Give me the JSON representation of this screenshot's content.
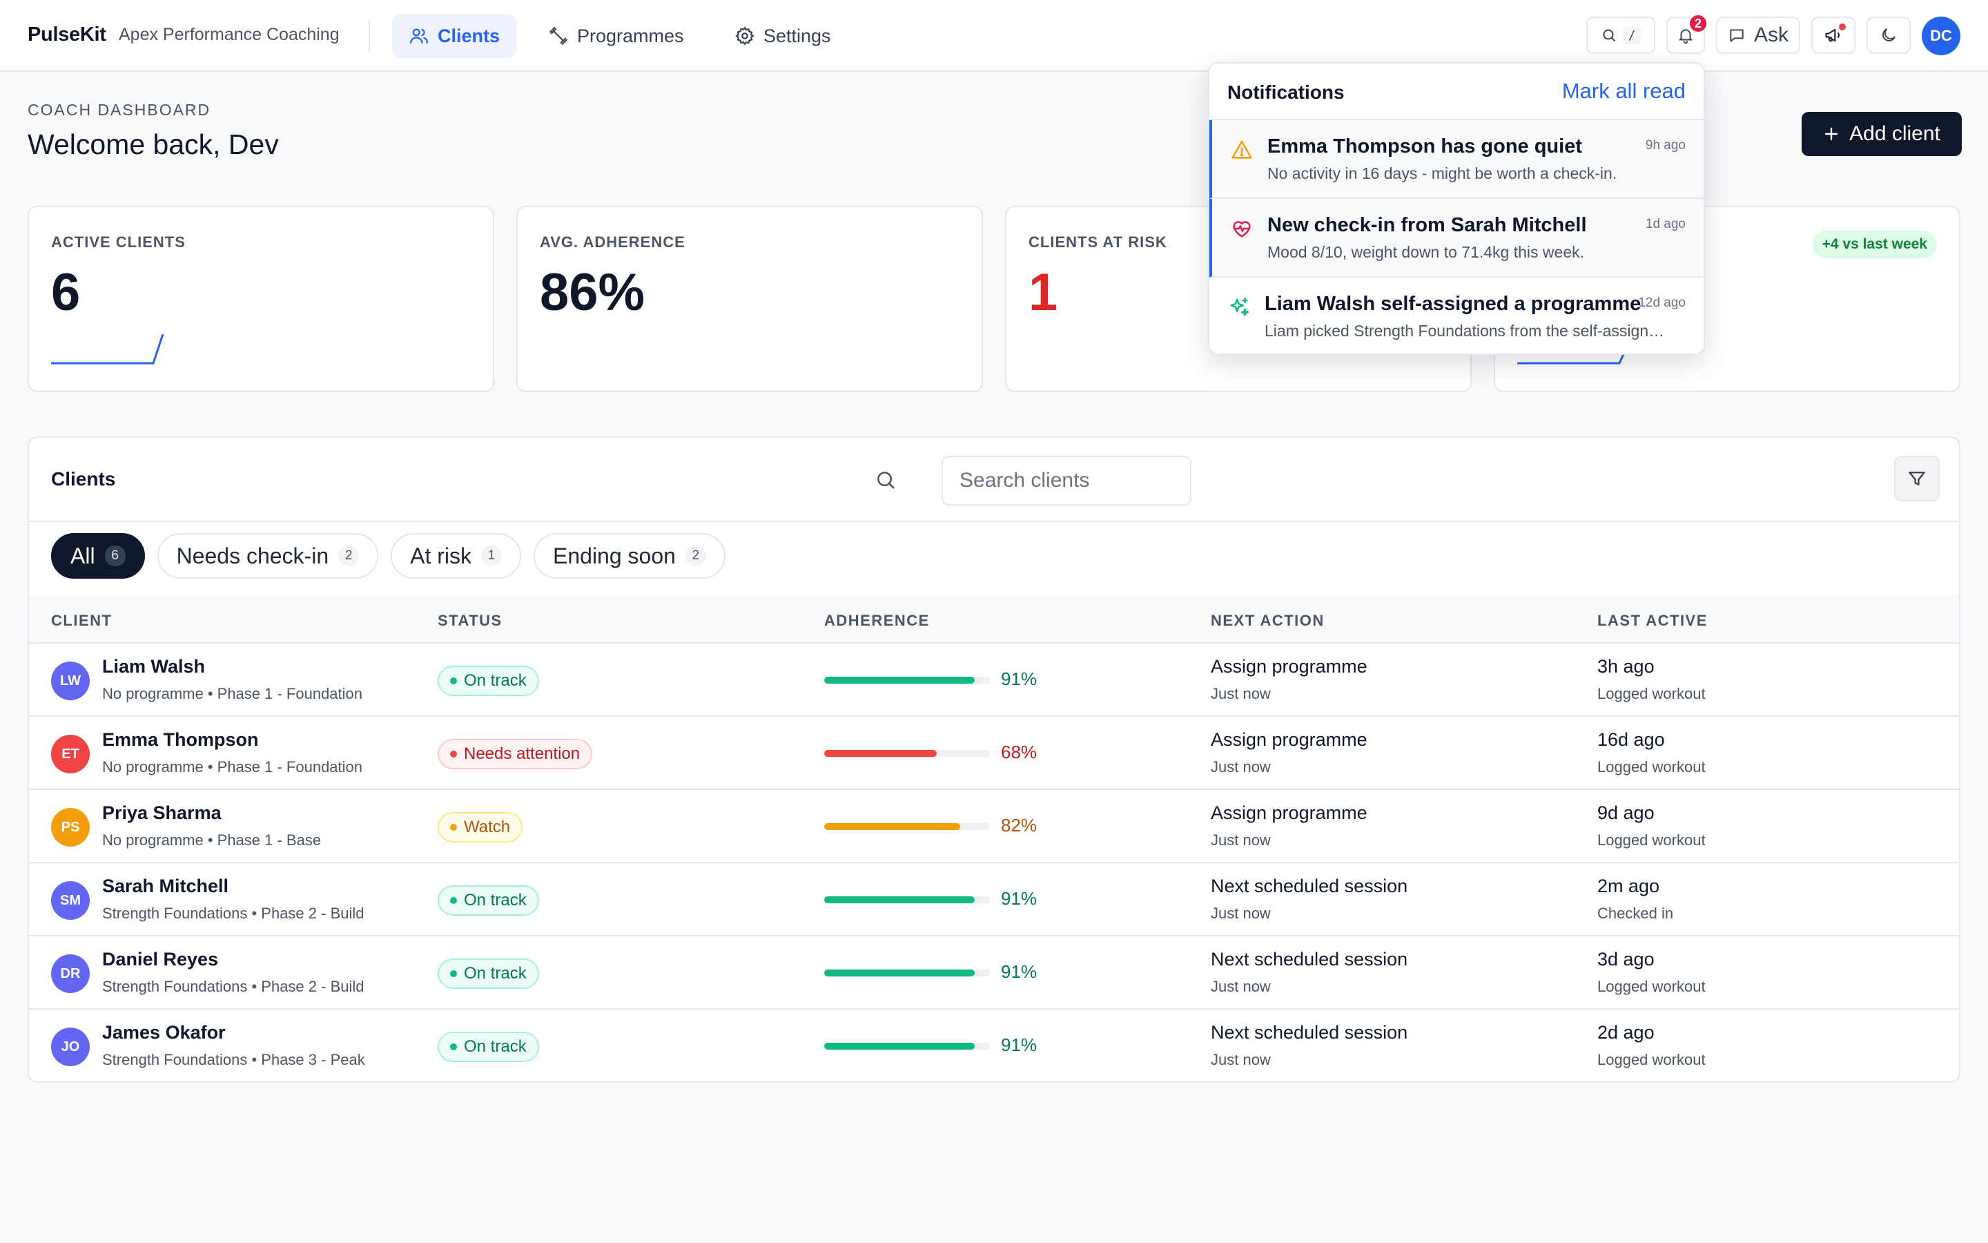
{
  "app": {
    "brand": "PulseKit",
    "org": "Apex Performance Coaching",
    "nav": [
      {
        "label": "Clients",
        "icon": "users-icon",
        "active": true
      },
      {
        "label": "Programmes",
        "icon": "dumbbell-icon",
        "active": false
      },
      {
        "label": "Settings",
        "icon": "gear-icon",
        "active": false
      }
    ],
    "search_shortcut": "/",
    "notification_count": "2",
    "ask_label": "Ask",
    "user_initials": "DC"
  },
  "header": {
    "eyebrow": "COACH DASHBOARD",
    "welcome": "Welcome back, Dev",
    "add_client_label": "Add client"
  },
  "stats": [
    {
      "label": "ACTIVE CLIENTS",
      "value": "6"
    },
    {
      "label": "AVG. ADHERENCE",
      "value": "86%"
    },
    {
      "label": "CLIENTS AT RISK",
      "value": "1"
    },
    {
      "label": "",
      "value": "",
      "delta": "+4 vs last week"
    }
  ],
  "clients_panel": {
    "title": "Clients",
    "search_placeholder": "Search clients",
    "filters": [
      {
        "label": "All",
        "count": "6",
        "active": true
      },
      {
        "label": "Needs check-in",
        "count": "2",
        "active": false
      },
      {
        "label": "At risk",
        "count": "1",
        "active": false
      },
      {
        "label": "Ending soon",
        "count": "2",
        "active": false
      }
    ],
    "columns": [
      "CLIENT",
      "STATUS",
      "ADHERENCE",
      "NEXT ACTION",
      "LAST ACTIVE"
    ],
    "rows": [
      {
        "initials": "LW",
        "avatar_color": "#6366f1",
        "name": "Liam Walsh",
        "sub": "No programme • Phase 1 - Foundation",
        "status": "On track",
        "status_kind": "good",
        "adherence": 91,
        "adherence_label": "91%",
        "next_action": "Assign programme",
        "next_action_sub": "Just now",
        "last_active": "3h ago",
        "last_active_sub": "Logged workout"
      },
      {
        "initials": "ET",
        "avatar_color": "#ef4444",
        "name": "Emma Thompson",
        "sub": "No programme • Phase 1 - Foundation",
        "status": "Needs attention",
        "status_kind": "bad",
        "adherence": 68,
        "adherence_label": "68%",
        "next_action": "Assign programme",
        "next_action_sub": "Just now",
        "last_active": "16d ago",
        "last_active_sub": "Logged workout"
      },
      {
        "initials": "PS",
        "avatar_color": "#f59e0b",
        "name": "Priya Sharma",
        "sub": "No programme • Phase 1 - Base",
        "status": "Watch",
        "status_kind": "warn",
        "adherence": 82,
        "adherence_label": "82%",
        "next_action": "Assign programme",
        "next_action_sub": "Just now",
        "last_active": "9d ago",
        "last_active_sub": "Logged workout"
      },
      {
        "initials": "SM",
        "avatar_color": "#6366f1",
        "name": "Sarah Mitchell",
        "sub": "Strength Foundations • Phase 2 - Build",
        "status": "On track",
        "status_kind": "good",
        "adherence": 91,
        "adherence_label": "91%",
        "next_action": "Next scheduled session",
        "next_action_sub": "Just now",
        "last_active": "2m ago",
        "last_active_sub": "Checked in"
      },
      {
        "initials": "DR",
        "avatar_color": "#6366f1",
        "name": "Daniel Reyes",
        "sub": "Strength Foundations • Phase 2 - Build",
        "status": "On track",
        "status_kind": "good",
        "adherence": 91,
        "adherence_label": "91%",
        "next_action": "Next scheduled session",
        "next_action_sub": "Just now",
        "last_active": "3d ago",
        "last_active_sub": "Logged workout"
      },
      {
        "initials": "JO",
        "avatar_color": "#6366f1",
        "name": "James Okafor",
        "sub": "Strength Foundations • Phase 3 - Peak",
        "status": "On track",
        "status_kind": "good",
        "adherence": 91,
        "adherence_label": "91%",
        "next_action": "Next scheduled session",
        "next_action_sub": "Just now",
        "last_active": "2d ago",
        "last_active_sub": "Logged workout"
      }
    ]
  },
  "notifications": {
    "title": "Notifications",
    "mark_all_read": "Mark all read",
    "items": [
      {
        "icon": "warning-icon",
        "title": "Emma Thompson has gone quiet",
        "body": "No activity in 16 days - might be worth a check-in.",
        "time": "9h ago",
        "unread": true
      },
      {
        "icon": "heart-pulse-icon",
        "title": "New check-in from Sarah Mitchell",
        "body": "Mood 8/10, weight down to 71.4kg this week.",
        "time": "1d ago",
        "unread": true
      },
      {
        "icon": "sparkles-icon",
        "title": "Liam Walsh self-assigned a programme",
        "body": "Liam picked Strength Foundations from the self-assign fl...",
        "time": "12d ago",
        "unread": false
      }
    ]
  },
  "colors": {
    "accent": "#2563eb",
    "good": "#10b981",
    "bad": "#ef4444",
    "warn": "#f59e0b",
    "dark": "#0f172a"
  }
}
